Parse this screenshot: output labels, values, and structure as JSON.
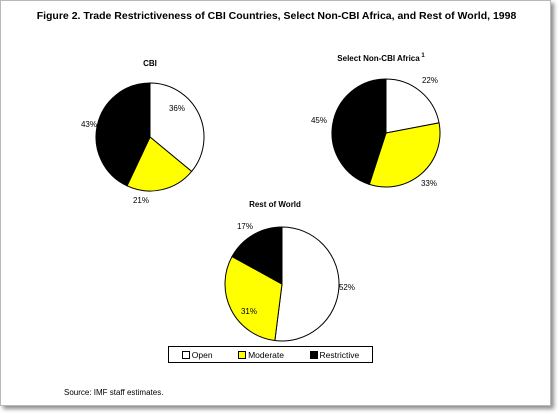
{
  "title": "Figure 2.  Trade Restrictiveness of CBI Countries, Select Non-CBI Africa, and Rest of World, 1998",
  "source": "Source: IMF staff estimates.",
  "legend": [
    "Open",
    "Moderate",
    "Restrictive"
  ],
  "colors": {
    "Open": "#ffffff",
    "Moderate": "#ffff00",
    "Restrictive": "#000000"
  },
  "chart_data": [
    {
      "type": "pie",
      "title": "CBI",
      "categories": [
        "Open",
        "Moderate",
        "Restrictive"
      ],
      "values": [
        36,
        21,
        43
      ],
      "labels": [
        "36%",
        "21%",
        "43%"
      ]
    },
    {
      "type": "pie",
      "title": "Select Non-CBI Africa",
      "title_superscript": "1",
      "categories": [
        "Open",
        "Moderate",
        "Restrictive"
      ],
      "values": [
        22,
        33,
        45
      ],
      "labels": [
        "22%",
        "33%",
        "45%"
      ]
    },
    {
      "type": "pie",
      "title": "Rest of World",
      "categories": [
        "Open",
        "Moderate",
        "Restrictive"
      ],
      "values": [
        52,
        31,
        17
      ],
      "labels": [
        "52%",
        "31%",
        "17%"
      ]
    }
  ]
}
